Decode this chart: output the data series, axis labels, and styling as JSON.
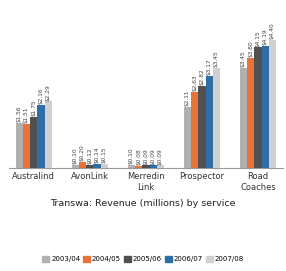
{
  "categories": [
    "Australind",
    "AvonLink",
    "Merredin\nLink",
    "Prospector",
    "Road\nCoaches"
  ],
  "years": [
    "2003/04",
    "2004/05",
    "2005/06",
    "2006/07",
    "2007/08"
  ],
  "values": [
    [
      1.56,
      1.51,
      1.75,
      2.16,
      2.29
    ],
    [
      0.1,
      0.2,
      0.12,
      0.14,
      0.15
    ],
    [
      0.1,
      0.08,
      0.09,
      0.09,
      0.09
    ],
    [
      2.11,
      2.63,
      2.82,
      3.17,
      3.45
    ],
    [
      3.45,
      3.8,
      4.15,
      4.19,
      4.4
    ]
  ],
  "colors": [
    "#b0b0b0",
    "#e8733a",
    "#505050",
    "#2e6ea6",
    "#d0d0d0"
  ],
  "title": "Transwa: Revenue (millions) by service",
  "bar_width": 0.13,
  "ylim": [
    0,
    5.5
  ],
  "label_fontsize": 4.2,
  "value_labels": [
    [
      "$1.56",
      "$1.51",
      "$1.75",
      "$2.16",
      "$2.29"
    ],
    [
      "$0.10",
      "$0.20",
      "$0.12",
      "$0.14",
      "$0.15"
    ],
    [
      "$0.10",
      "$0.08",
      "$0.09",
      "$0.09",
      "$0.09"
    ],
    [
      "$2.11",
      "$2.63",
      "$2.82",
      "$3.17",
      "$3.45"
    ],
    [
      "$3.45",
      "$3.80",
      "$4.15",
      "$4.19",
      "$4.40"
    ]
  ]
}
